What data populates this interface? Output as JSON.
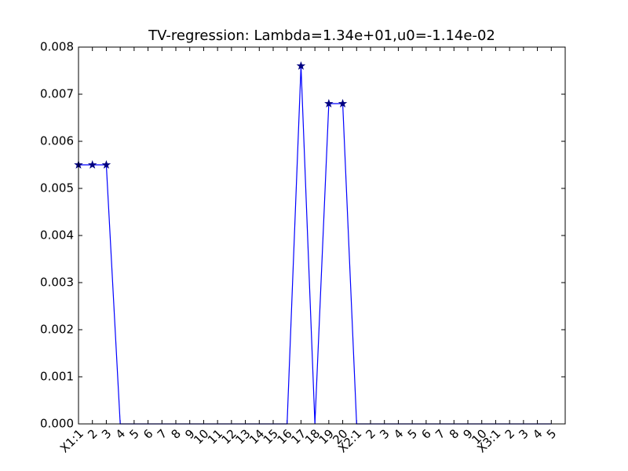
{
  "chart_data": {
    "type": "line",
    "title": "TV-regression: Lambda=1.34e+01,u0=-1.14e-02",
    "categories": [
      "X1:1",
      "2",
      "3",
      "4",
      "5",
      "6",
      "7",
      "8",
      "9",
      "10",
      "11",
      "12",
      "13",
      "14",
      "15",
      "16",
      "17",
      "18",
      "19",
      "20",
      "X2:1",
      "2",
      "3",
      "4",
      "5",
      "6",
      "7",
      "8",
      "9",
      "10",
      "X3:1",
      "2",
      "3",
      "4",
      "5"
    ],
    "series": [
      {
        "color": "#0000ff",
        "values": [
          0.0055,
          0.0055,
          0.0055,
          0,
          0,
          0,
          0,
          0,
          0,
          0,
          0,
          0,
          0,
          0,
          0,
          0,
          0.0076,
          0,
          0.0068,
          0.0068,
          0,
          0,
          0,
          0,
          0,
          0,
          0,
          0,
          0,
          0,
          0,
          0,
          0,
          0,
          0
        ]
      }
    ],
    "xlim": [
      0,
      35
    ],
    "ylim": [
      0,
      0.008
    ],
    "yticks": [
      {
        "value": 0,
        "label": "0.000"
      },
      {
        "value": 0.001,
        "label": "0.001"
      },
      {
        "value": 0.002,
        "label": "0.002"
      },
      {
        "value": 0.003,
        "label": "0.003"
      },
      {
        "value": 0.004,
        "label": "0.004"
      },
      {
        "value": 0.005,
        "label": "0.005"
      },
      {
        "value": 0.006,
        "label": "0.006"
      },
      {
        "value": 0.007,
        "label": "0.007"
      },
      {
        "value": 0.008,
        "label": "0.008"
      }
    ]
  }
}
